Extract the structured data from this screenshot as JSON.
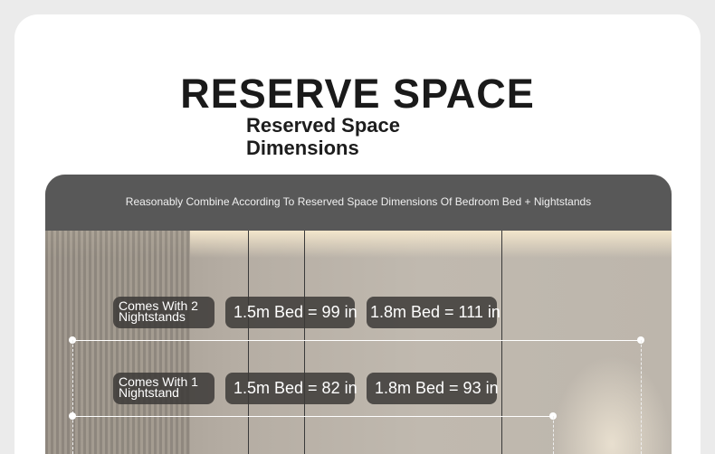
{
  "title": "RESERVE SPACE",
  "subtitle": "Reserved Space Dimensions",
  "banner": "Reasonably Combine According To Reserved Space Dimensions Of Bedroom Bed + Nightstands",
  "rows": [
    {
      "label_line1": "Comes With 2",
      "label_line2": "Nightstands",
      "v15": "1.5m Bed = 99 in",
      "v18": "1.8m Bed = 111 in"
    },
    {
      "label_line1": "Comes With 1",
      "label_line2": "Nightstand",
      "v15": "1.5m Bed = 82 in",
      "v18": "1.8m Bed = 93 in"
    }
  ]
}
